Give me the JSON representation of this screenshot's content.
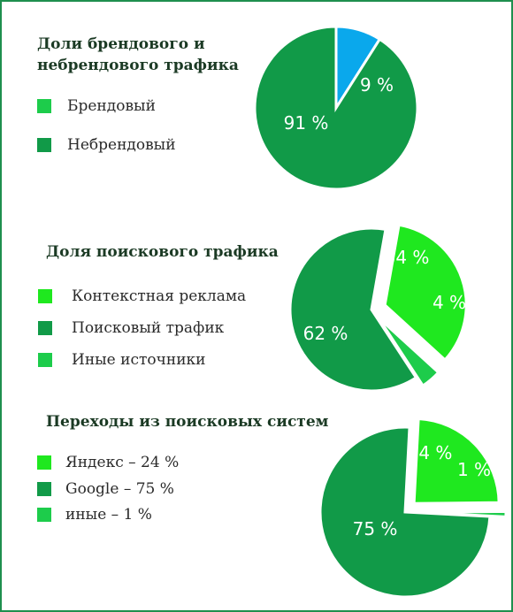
{
  "colors": {
    "border": "#1e8f4e",
    "blue": "#0aa8ec",
    "dark_green": "#119a48",
    "bright_green": "#1fe81f",
    "light_green": "#1dcc4b"
  },
  "chart_data": [
    {
      "type": "pie",
      "title": "Доли брендового и небрендового трафика",
      "title_lines": [
        "Доли брендового и",
        "небрендового трафика"
      ],
      "legend": [
        "Брендовый",
        "Небрендовый"
      ],
      "slices": [
        {
          "name": "Брендовый",
          "value": 9,
          "label": "9 %",
          "color": "#0aa8ec"
        },
        {
          "name": "Небрендовый",
          "value": 91,
          "label": "91 %",
          "color": "#119a48"
        }
      ]
    },
    {
      "type": "pie",
      "title": "Доля поискового трафика",
      "legend": [
        "Контекстная реклама",
        "Поисковый трафик",
        "Иные источники"
      ],
      "slices": [
        {
          "name": "Контекстная реклама",
          "value": 34,
          "label": "34 %",
          "color": "#1fe81f"
        },
        {
          "name": "Иные источники",
          "value": 4,
          "label": "4 %",
          "color": "#1dcc4b"
        },
        {
          "name": "Поисковый трафик",
          "value": 62,
          "label": "62 %",
          "color": "#119a48"
        }
      ]
    },
    {
      "type": "pie",
      "title": "Переходы из поисковых систем",
      "legend": [
        "Яндекс – 24 %",
        "Google – 75 %",
        "иные – 1 %"
      ],
      "slices": [
        {
          "name": "Яндекс",
          "value": 24,
          "label": "24 %",
          "color": "#1fe81f"
        },
        {
          "name": "иные",
          "value": 1,
          "label": "1 %",
          "color": "#1dcc4b"
        },
        {
          "name": "Google",
          "value": 75,
          "label": "75 %",
          "color": "#119a48"
        }
      ]
    }
  ]
}
